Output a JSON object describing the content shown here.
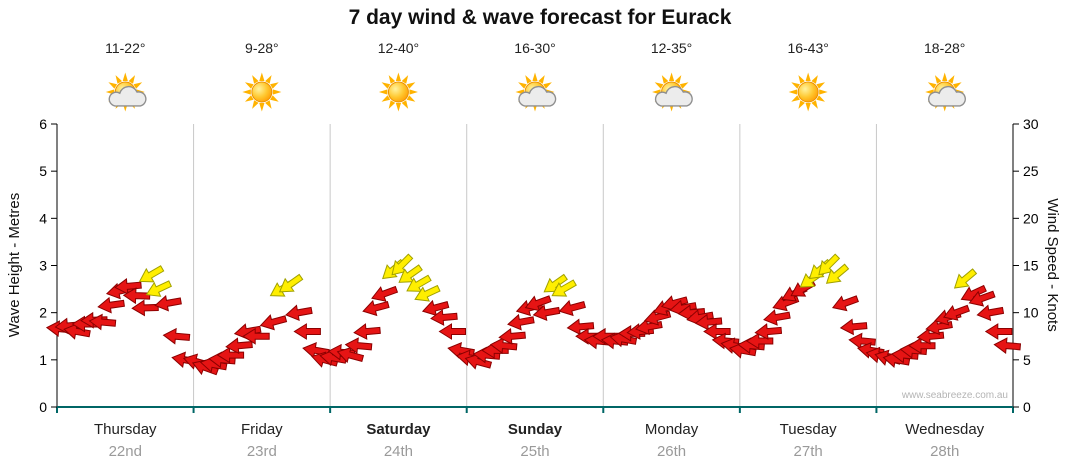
{
  "title": "7 day wind & wave forecast for Eurack",
  "watermark": "www.seabreeze.com.au",
  "axes": {
    "left_label": "Wave Height - Metres",
    "right_label": "Wind Speed - Knots",
    "left_ticks": [
      0,
      1,
      2,
      3,
      4,
      5,
      6
    ],
    "right_ticks": [
      0,
      5,
      10,
      15,
      20,
      25,
      30
    ]
  },
  "days": [
    {
      "name": "Thursday",
      "date": "22nd",
      "temp": "11-22°",
      "icon": "sun-cloud",
      "weekend": false
    },
    {
      "name": "Friday",
      "date": "23rd",
      "temp": "9-28°",
      "icon": "sun",
      "weekend": false
    },
    {
      "name": "Saturday",
      "date": "24th",
      "temp": "12-40°",
      "icon": "sun",
      "weekend": true
    },
    {
      "name": "Sunday",
      "date": "25th",
      "temp": "16-30°",
      "icon": "sun-cloud",
      "weekend": true
    },
    {
      "name": "Monday",
      "date": "26th",
      "temp": "12-35°",
      "icon": "sun-cloud",
      "weekend": false
    },
    {
      "name": "Tuesday",
      "date": "27th",
      "temp": "16-43°",
      "icon": "sun",
      "weekend": false
    },
    {
      "name": "Wednesday",
      "date": "28th",
      "temp": "18-28°",
      "icon": "sun-cloud",
      "weekend": false
    }
  ],
  "colors": {
    "red": "#e61414",
    "red_outline": "#8b0000",
    "yellow": "#ffee00",
    "yellow_outline": "#a0a000",
    "grid": "#c8c8c8",
    "baseline": "#006666",
    "axis": "#000000",
    "date_text": "#9a9a9a"
  },
  "chart_data": {
    "type": "scatter",
    "subtype": "wind-arrows",
    "title": "7 day wind & wave forecast for Eurack",
    "categories": [
      "Thursday 22nd",
      "Friday 23rd",
      "Saturday 24th",
      "Sunday 25th",
      "Monday 26th",
      "Tuesday 27th",
      "Wednesday 28th"
    ],
    "x_range_hours": [
      0,
      168
    ],
    "y_left": {
      "label": "Wave Height - Metres",
      "range": [
        0,
        6
      ]
    },
    "y_right": {
      "label": "Wind Speed - Knots",
      "range": [
        0,
        30
      ]
    },
    "grid": "vertical-day-separators",
    "legend": "none",
    "point_format": [
      "hour",
      "knots",
      "direction_deg",
      "color_0red_1yellow"
    ],
    "points": [
      [
        0.5,
        8.3,
        185,
        0
      ],
      [
        2,
        8.6,
        175,
        0
      ],
      [
        3.5,
        8,
        190,
        0
      ],
      [
        5,
        8.8,
        180,
        0
      ],
      [
        6.5,
        9.2,
        178,
        0
      ],
      [
        8,
        9,
        185,
        0
      ],
      [
        9.5,
        10.8,
        172,
        0
      ],
      [
        11,
        12.3,
        168,
        0
      ],
      [
        12.5,
        12.8,
        175,
        0
      ],
      [
        14,
        11.8,
        182,
        0
      ],
      [
        15.5,
        10.5,
        178,
        0
      ],
      [
        16.5,
        14,
        150,
        1
      ],
      [
        17.8,
        12.5,
        155,
        1
      ],
      [
        19.5,
        11,
        170,
        0
      ],
      [
        21,
        7.5,
        185,
        0
      ],
      [
        22.5,
        5,
        190,
        0
      ],
      [
        24.5,
        4.8,
        195,
        0
      ],
      [
        26,
        4.2,
        200,
        0
      ],
      [
        27.5,
        4.5,
        190,
        0
      ],
      [
        29,
        5,
        185,
        0
      ],
      [
        30.5,
        5.5,
        180,
        0
      ],
      [
        32,
        6.5,
        175,
        0
      ],
      [
        33.5,
        8,
        170,
        0
      ],
      [
        35,
        7.5,
        180,
        0
      ],
      [
        38,
        9,
        165,
        0
      ],
      [
        39.5,
        12.5,
        150,
        1
      ],
      [
        41,
        13,
        145,
        1
      ],
      [
        42.5,
        10,
        170,
        0
      ],
      [
        44,
        8,
        180,
        0
      ],
      [
        45.5,
        6,
        190,
        0
      ],
      [
        47,
        5,
        195,
        0
      ],
      [
        48.5,
        5.2,
        190,
        0
      ],
      [
        50,
        5.8,
        185,
        0
      ],
      [
        51.5,
        5.5,
        195,
        0
      ],
      [
        53,
        6.5,
        185,
        0
      ],
      [
        54.5,
        8,
        175,
        0
      ],
      [
        56,
        10.5,
        165,
        0
      ],
      [
        57.5,
        12,
        160,
        0
      ],
      [
        59,
        14.5,
        140,
        1
      ],
      [
        60.5,
        15,
        135,
        1
      ],
      [
        62,
        14,
        145,
        1
      ],
      [
        63.5,
        13,
        150,
        1
      ],
      [
        65,
        12,
        155,
        1
      ],
      [
        66.5,
        10.5,
        165,
        0
      ],
      [
        68,
        9.5,
        175,
        0
      ],
      [
        69.5,
        8,
        180,
        0
      ],
      [
        71,
        6,
        190,
        0
      ],
      [
        72.5,
        5.2,
        190,
        0
      ],
      [
        74,
        4.8,
        195,
        0
      ],
      [
        75.5,
        5.5,
        185,
        0
      ],
      [
        77,
        6,
        180,
        0
      ],
      [
        78.5,
        6.5,
        185,
        0
      ],
      [
        80,
        7.5,
        175,
        0
      ],
      [
        81.5,
        9,
        170,
        0
      ],
      [
        83,
        10.5,
        165,
        0
      ],
      [
        84.5,
        11,
        160,
        0
      ],
      [
        86,
        10,
        170,
        0
      ],
      [
        87.5,
        13,
        145,
        1
      ],
      [
        89,
        12.5,
        150,
        1
      ],
      [
        90.5,
        10.5,
        165,
        0
      ],
      [
        92,
        8.5,
        175,
        0
      ],
      [
        93.5,
        7.5,
        180,
        0
      ],
      [
        95,
        7,
        185,
        0
      ],
      [
        96.5,
        7.5,
        180,
        0
      ],
      [
        98,
        7,
        185,
        0
      ],
      [
        99.5,
        7.2,
        190,
        0
      ],
      [
        101,
        7.8,
        180,
        0
      ],
      [
        102.5,
        8,
        175,
        0
      ],
      [
        104,
        8.5,
        170,
        0
      ],
      [
        105.5,
        9.5,
        165,
        0
      ],
      [
        107,
        10.5,
        160,
        0
      ],
      [
        108.5,
        11,
        165,
        0
      ],
      [
        110,
        10.5,
        170,
        0
      ],
      [
        111.5,
        10,
        175,
        0
      ],
      [
        113,
        9.5,
        170,
        0
      ],
      [
        114.5,
        9,
        175,
        0
      ],
      [
        116,
        8,
        180,
        0
      ],
      [
        117.5,
        7,
        185,
        0
      ],
      [
        119,
        6.5,
        190,
        0
      ],
      [
        120.5,
        6,
        190,
        0
      ],
      [
        122,
        6.5,
        185,
        0
      ],
      [
        123.5,
        7,
        180,
        0
      ],
      [
        125,
        8,
        175,
        0
      ],
      [
        126.5,
        9.5,
        170,
        0
      ],
      [
        128,
        11,
        160,
        0
      ],
      [
        129.5,
        12,
        155,
        0
      ],
      [
        131,
        12.5,
        150,
        0
      ],
      [
        132.5,
        13.5,
        145,
        1
      ],
      [
        134,
        14.5,
        140,
        1
      ],
      [
        135.5,
        15,
        135,
        1
      ],
      [
        137,
        14,
        140,
        1
      ],
      [
        138.5,
        11,
        160,
        0
      ],
      [
        140,
        8.5,
        175,
        0
      ],
      [
        141.5,
        7,
        185,
        0
      ],
      [
        143,
        6,
        190,
        0
      ],
      [
        144.5,
        5.5,
        190,
        0
      ],
      [
        146,
        5.2,
        195,
        0
      ],
      [
        147.5,
        5,
        190,
        0
      ],
      [
        149,
        5.5,
        185,
        0
      ],
      [
        150.5,
        6,
        185,
        0
      ],
      [
        152,
        6.5,
        180,
        0
      ],
      [
        153.5,
        7.5,
        175,
        0
      ],
      [
        155,
        8.5,
        170,
        0
      ],
      [
        156.5,
        9.5,
        165,
        0
      ],
      [
        158,
        10,
        160,
        0
      ],
      [
        159.5,
        13.5,
        140,
        1
      ],
      [
        161,
        12,
        155,
        0
      ],
      [
        162.5,
        11.5,
        160,
        0
      ],
      [
        164,
        10,
        170,
        0
      ],
      [
        165.5,
        8,
        180,
        0
      ],
      [
        167,
        6.5,
        185,
        0
      ]
    ]
  }
}
